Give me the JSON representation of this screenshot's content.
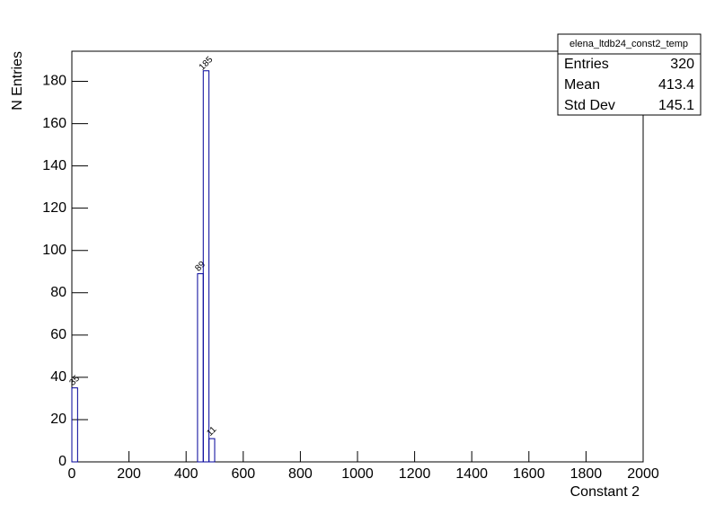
{
  "chart_data": {
    "type": "histogram",
    "x_label": "Constant 2",
    "y_label": "N Entries",
    "bins": [
      0,
      20,
      40,
      60,
      80,
      100,
      120,
      140,
      160,
      180,
      200,
      220,
      240,
      260,
      280,
      300,
      320,
      340,
      360,
      380,
      400,
      420,
      440,
      460,
      480,
      500,
      520,
      540,
      560,
      580,
      600,
      620,
      640,
      660,
      680,
      700,
      720,
      740,
      760,
      780,
      800,
      820,
      840,
      860,
      880,
      900,
      920,
      940,
      960,
      980,
      1000,
      1020,
      1040,
      1060,
      1080,
      1100,
      1120,
      1140,
      1160,
      1180,
      1200,
      1220,
      1240,
      1260,
      1280,
      1300,
      1320,
      1340,
      1360,
      1380,
      1400,
      1420,
      1440,
      1460,
      1480,
      1500,
      1520,
      1540,
      1560,
      1580,
      1600,
      1620,
      1640,
      1660,
      1680,
      1700,
      1720,
      1740,
      1760,
      1780,
      1800,
      1820,
      1840,
      1860,
      1880,
      1900,
      1920,
      1940,
      1960,
      1980,
      2000
    ],
    "values": [
      35,
      0,
      0,
      0,
      0,
      0,
      0,
      0,
      0,
      0,
      0,
      0,
      0,
      0,
      0,
      0,
      0,
      0,
      0,
      0,
      0,
      0,
      89,
      185,
      11,
      0,
      0,
      0,
      0,
      0,
      0,
      0,
      0,
      0,
      0,
      0,
      0,
      0,
      0,
      0,
      0,
      0,
      0,
      0,
      0,
      0,
      0,
      0,
      0,
      0,
      0,
      0,
      0,
      0,
      0,
      0,
      0,
      0,
      0,
      0,
      0,
      0,
      0,
      0,
      0,
      0,
      0,
      0,
      0,
      0,
      0,
      0,
      0,
      0,
      0,
      0,
      0,
      0,
      0,
      0,
      0,
      0,
      0,
      0,
      0,
      0,
      0,
      0,
      0,
      0,
      0,
      0,
      0,
      0,
      0,
      0,
      0,
      0,
      0,
      0
    ],
    "color": "#000099",
    "xlim": [
      0,
      2000
    ],
    "xticks": [
      0,
      200,
      400,
      600,
      800,
      1000,
      1200,
      1400,
      1600,
      1800,
      2000
    ],
    "ylim": [
      0,
      194.25
    ],
    "yticks": [
      0,
      20,
      40,
      60,
      80,
      100,
      120,
      140,
      160,
      180
    ],
    "stats": {
      "title": "elena_ltdb24_const2_temp",
      "rows": [
        [
          "Entries",
          "320"
        ],
        [
          "Mean",
          "413.4"
        ],
        [
          "Std Dev",
          "145.1"
        ]
      ]
    }
  }
}
